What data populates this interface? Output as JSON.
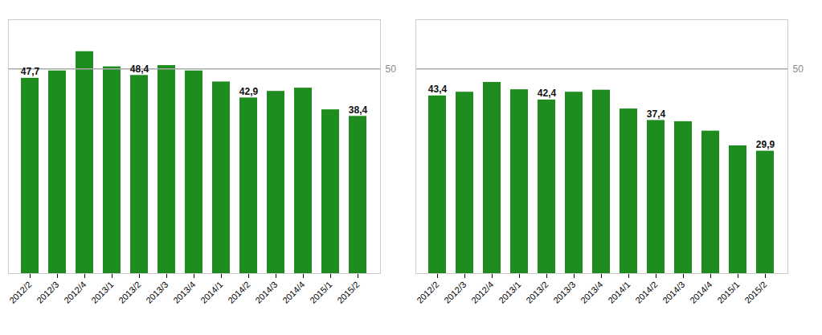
{
  "chart_data": [
    {
      "type": "bar",
      "categories": [
        "2012/2",
        "2012/3",
        "2012/4",
        "2013/1",
        "2013/2",
        "2013/3",
        "2013/4",
        "2014/1",
        "2014/2",
        "2014/3",
        "2014/4",
        "2015/1",
        "2015/2"
      ],
      "values": [
        47.7,
        49.5,
        54.2,
        50.5,
        48.4,
        50.8,
        49.5,
        46.8,
        42.9,
        44.5,
        45.3,
        40.0,
        38.4
      ],
      "value_labels": [
        "47,7",
        null,
        null,
        null,
        "48,4",
        null,
        null,
        null,
        "42,9",
        null,
        null,
        null,
        "38,4"
      ],
      "color": "#1e8c1e",
      "ylim": [
        0,
        62
      ],
      "tick_labels": "x",
      "grid": false,
      "annotations": [
        {
          "y": 50,
          "text": "50"
        }
      ]
    },
    {
      "type": "bar",
      "categories": [
        "2012/2",
        "2012/3",
        "2012/4",
        "2013/1",
        "2013/2",
        "2013/3",
        "2013/4",
        "2014/1",
        "2014/2",
        "2014/3",
        "2014/4",
        "2015/1",
        "2015/2"
      ],
      "values": [
        43.4,
        44.3,
        46.7,
        44.9,
        42.4,
        44.3,
        44.8,
        40.2,
        37.4,
        37.1,
        34.8,
        31.2,
        29.9
      ],
      "value_labels": [
        "43,4",
        null,
        null,
        null,
        "42,4",
        null,
        null,
        null,
        "37,4",
        null,
        null,
        null,
        "29,9"
      ],
      "color": "#1e8c1e",
      "ylim": [
        0,
        62
      ],
      "tick_labels": "x",
      "grid": false,
      "annotations": [
        {
          "y": 50,
          "text": "50"
        }
      ]
    }
  ]
}
